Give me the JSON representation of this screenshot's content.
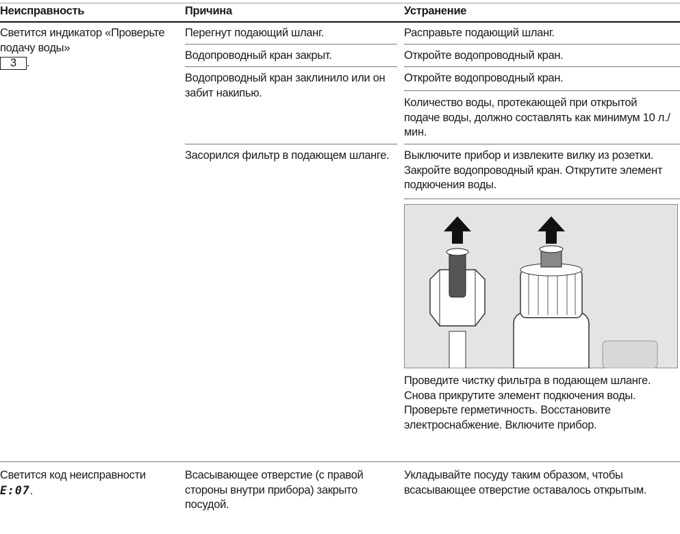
{
  "table": {
    "header": [
      "Неисправность",
      "Причина",
      "Устранение"
    ],
    "rows": [
      {
        "problem": "Светится индикатор «Проверьте подачу воды»",
        "key": "3",
        "problem_end": ".",
        "causes": [
          {
            "cause": "Перегнут подающий шланг.",
            "remedies": [
              "Расправьте подающий шланг."
            ]
          },
          {
            "cause": "Водопроводный кран закрыт.",
            "remedies": [
              "Откройте водопроводный кран."
            ]
          },
          {
            "cause": "Водопроводный кран заклинило или он забит накипью.",
            "remedies": [
              "Откройте водопроводный кран.",
              "Количество воды, протекающей при открытой подаче воды, должно составлять как минимум 10 л./мин."
            ]
          },
          {
            "cause": "Засорился фильтр в подающем шланге.",
            "remedies": [
              "Выключите прибор и извлеките вилку из розетки. Закройте водопроводный кран. Открутите элемент подкючения воды.",
              "Проведите чистку фильтра в подающем шланге. Снова прикрутите элемент подкючения воды. Проверьте герметичность. Восстановите электроснабжение. Включите прибор."
            ]
          }
        ]
      },
      {
        "problem": "Светится код неисправности",
        "code": "E:07",
        "problem_end": ".",
        "causes": [
          {
            "cause": "Всасывающее отверстие (с правой стороны внутри прибора) закрыто посудой.",
            "remedies": [
              "Укладывайте посуду таким образом, чтобы всасывающее отверстие оставалось открытым."
            ]
          }
        ]
      }
    ]
  }
}
